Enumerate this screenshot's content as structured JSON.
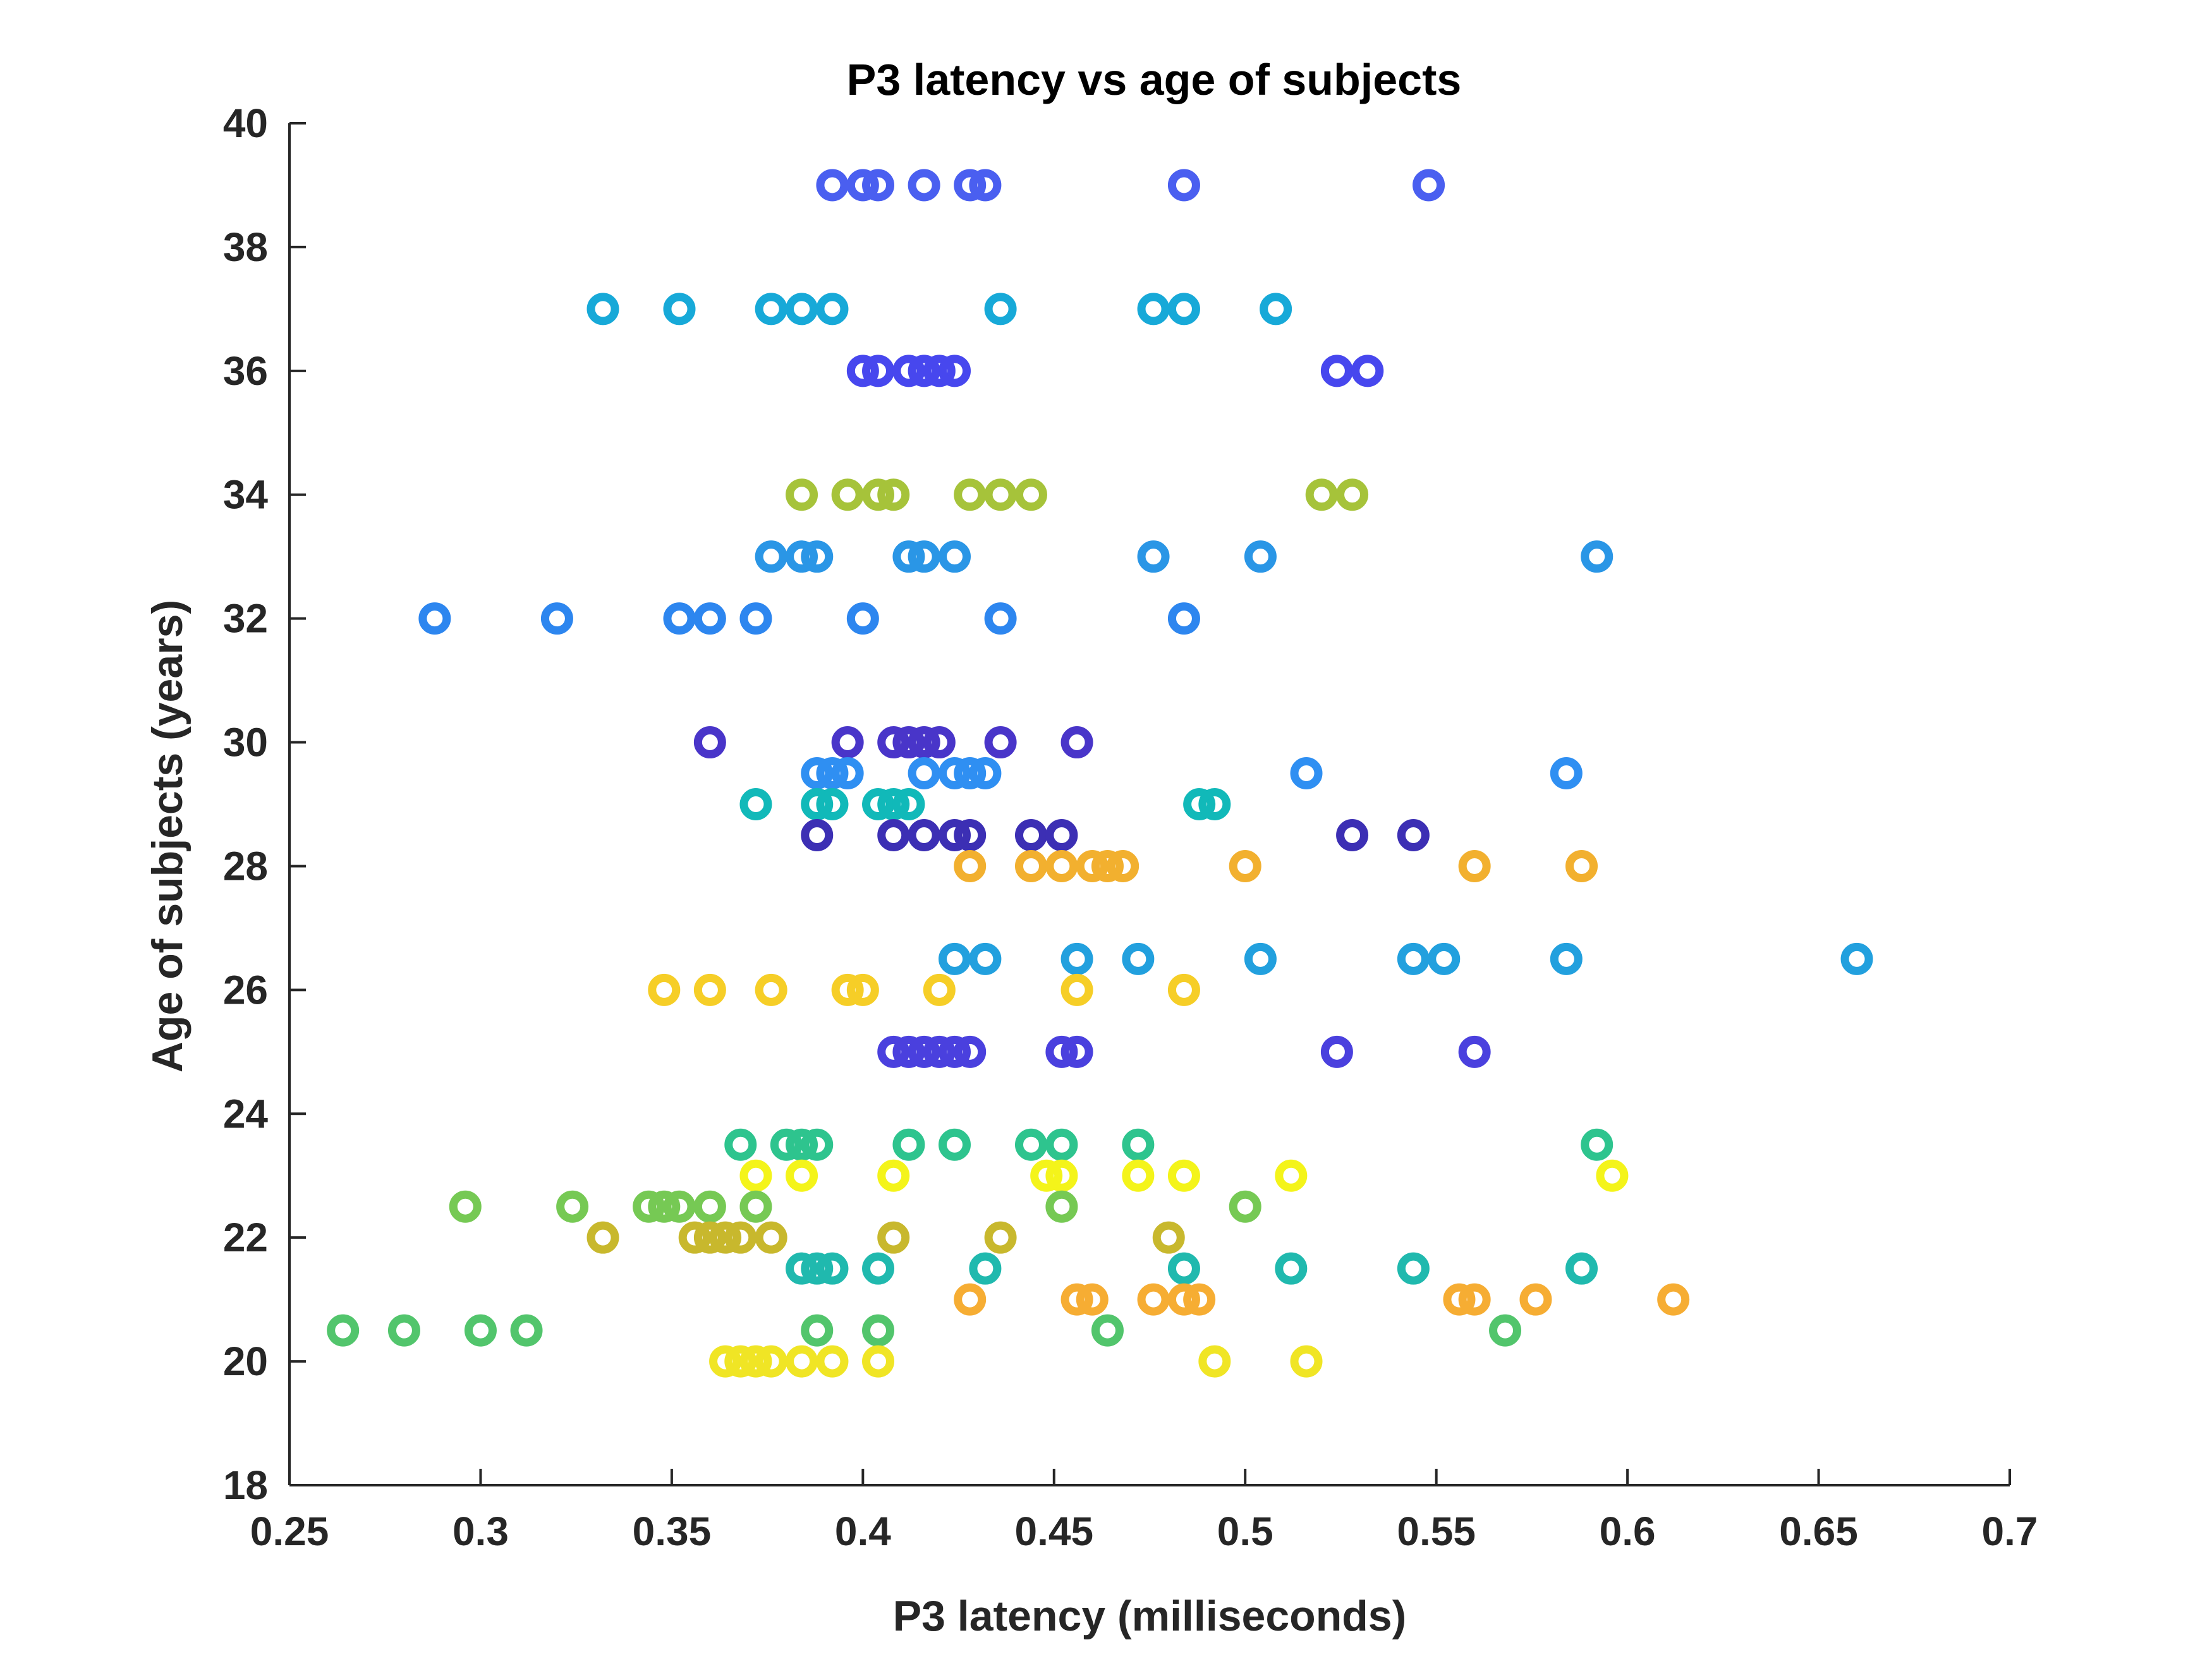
{
  "chart_data": {
    "type": "scatter",
    "title": "P3 latency vs age of subjects",
    "xlabel": "P3 latency (milliseconds)",
    "ylabel": "Age of subjects (years)",
    "xlim": [
      0.25,
      0.7
    ],
    "ylim": [
      18,
      40
    ],
    "xticks": [
      0.25,
      0.3,
      0.35,
      0.4,
      0.45,
      0.5,
      0.55,
      0.6,
      0.65,
      0.7
    ],
    "xtick_labels": [
      "0.25",
      "0.3",
      "0.35",
      "0.4",
      "0.45",
      "0.5",
      "0.55",
      "0.6",
      "0.65",
      "0.7"
    ],
    "yticks": [
      18,
      20,
      22,
      24,
      26,
      28,
      30,
      32,
      34,
      36,
      38,
      40
    ],
    "ytick_labels": [
      "18",
      "20",
      "22",
      "24",
      "26",
      "28",
      "30",
      "32",
      "34",
      "36",
      "38",
      "40"
    ],
    "grid": false,
    "series": [
      {
        "name": "age 39",
        "color": "#4a5ff0",
        "y": 39,
        "x": [
          0.392,
          0.4,
          0.404,
          0.416,
          0.428,
          0.432,
          0.484,
          0.548
        ]
      },
      {
        "name": "age 37",
        "color": "#17a9d8",
        "y": 37,
        "x": [
          0.332,
          0.352,
          0.376,
          0.384,
          0.392,
          0.436,
          0.476,
          0.484,
          0.508
        ]
      },
      {
        "name": "age 36",
        "color": "#4747ee",
        "y": 36,
        "x": [
          0.4,
          0.404,
          0.412,
          0.416,
          0.42,
          0.424,
          0.524,
          0.532
        ]
      },
      {
        "name": "age 34",
        "color": "#a6c33a",
        "y": 34,
        "x": [
          0.384,
          0.396,
          0.404,
          0.408,
          0.428,
          0.436,
          0.444,
          0.52,
          0.528
        ]
      },
      {
        "name": "age 33",
        "color": "#2a96e6",
        "y": 33,
        "x": [
          0.376,
          0.384,
          0.388,
          0.412,
          0.416,
          0.424,
          0.476,
          0.504,
          0.592
        ]
      },
      {
        "name": "age 32",
        "color": "#2d86ef",
        "y": 32,
        "x": [
          0.288,
          0.32,
          0.352,
          0.36,
          0.372,
          0.4,
          0.436,
          0.484
        ]
      },
      {
        "name": "age 30",
        "color": "#4935c9",
        "y": 30,
        "x": [
          0.36,
          0.396,
          0.408,
          0.412,
          0.416,
          0.42,
          0.436,
          0.456
        ]
      },
      {
        "name": "age 29.5",
        "color": "#2f8ff2",
        "y": 29.5,
        "x": [
          0.388,
          0.392,
          0.396,
          0.416,
          0.424,
          0.428,
          0.432,
          0.516,
          0.584
        ]
      },
      {
        "name": "age 29",
        "color": "#11b9b9",
        "y": 29,
        "x": [
          0.372,
          0.388,
          0.392,
          0.404,
          0.408,
          0.412,
          0.488,
          0.492
        ]
      },
      {
        "name": "age 28.5",
        "color": "#3c2fb4",
        "y": 28.5,
        "x": [
          0.388,
          0.408,
          0.416,
          0.424,
          0.428,
          0.444,
          0.452,
          0.528,
          0.544
        ]
      },
      {
        "name": "age 28",
        "color": "#f2b02f",
        "y": 28,
        "x": [
          0.428,
          0.444,
          0.452,
          0.46,
          0.464,
          0.468,
          0.5,
          0.56,
          0.588
        ]
      },
      {
        "name": "age 26.5",
        "color": "#22a0de",
        "y": 26.5,
        "x": [
          0.424,
          0.432,
          0.456,
          0.472,
          0.504,
          0.544,
          0.552,
          0.584,
          0.66
        ]
      },
      {
        "name": "age 26",
        "color": "#f6ce27",
        "y": 26,
        "x": [
          0.348,
          0.36,
          0.376,
          0.396,
          0.4,
          0.42,
          0.456,
          0.484
        ]
      },
      {
        "name": "age 25",
        "color": "#4a40de",
        "y": 25,
        "x": [
          0.408,
          0.412,
          0.416,
          0.42,
          0.424,
          0.428,
          0.452,
          0.456,
          0.524,
          0.56
        ]
      },
      {
        "name": "age 23.5",
        "color": "#2ec48e",
        "y": 23.5,
        "x": [
          0.368,
          0.38,
          0.384,
          0.388,
          0.412,
          0.424,
          0.444,
          0.452,
          0.472,
          0.592
        ]
      },
      {
        "name": "age 23",
        "color": "#f4f41a",
        "y": 23,
        "x": [
          0.372,
          0.384,
          0.408,
          0.448,
          0.452,
          0.472,
          0.484,
          0.512,
          0.596
        ]
      },
      {
        "name": "age 22.5",
        "color": "#76c954",
        "y": 22.5,
        "x": [
          0.296,
          0.324,
          0.344,
          0.348,
          0.352,
          0.36,
          0.372,
          0.452,
          0.5
        ]
      },
      {
        "name": "age 22",
        "color": "#c8b82d",
        "y": 22,
        "x": [
          0.332,
          0.356,
          0.36,
          0.364,
          0.368,
          0.376,
          0.408,
          0.436,
          0.48
        ]
      },
      {
        "name": "age 21.5",
        "color": "#20b9ae",
        "y": 21.5,
        "x": [
          0.384,
          0.388,
          0.392,
          0.404,
          0.432,
          0.484,
          0.512,
          0.544,
          0.588
        ]
      },
      {
        "name": "age 21",
        "color": "#f6ad33",
        "y": 21,
        "x": [
          0.428,
          0.456,
          0.46,
          0.476,
          0.484,
          0.488,
          0.556,
          0.56,
          0.576,
          0.612
        ]
      },
      {
        "name": "age 20.5",
        "color": "#52c56c",
        "y": 20.5,
        "x": [
          0.264,
          0.28,
          0.3,
          0.312,
          0.388,
          0.404,
          0.464,
          0.568
        ]
      },
      {
        "name": "age 20",
        "color": "#f0e525",
        "y": 20,
        "x": [
          0.364,
          0.368,
          0.372,
          0.376,
          0.384,
          0.392,
          0.404,
          0.492,
          0.516
        ]
      }
    ]
  }
}
